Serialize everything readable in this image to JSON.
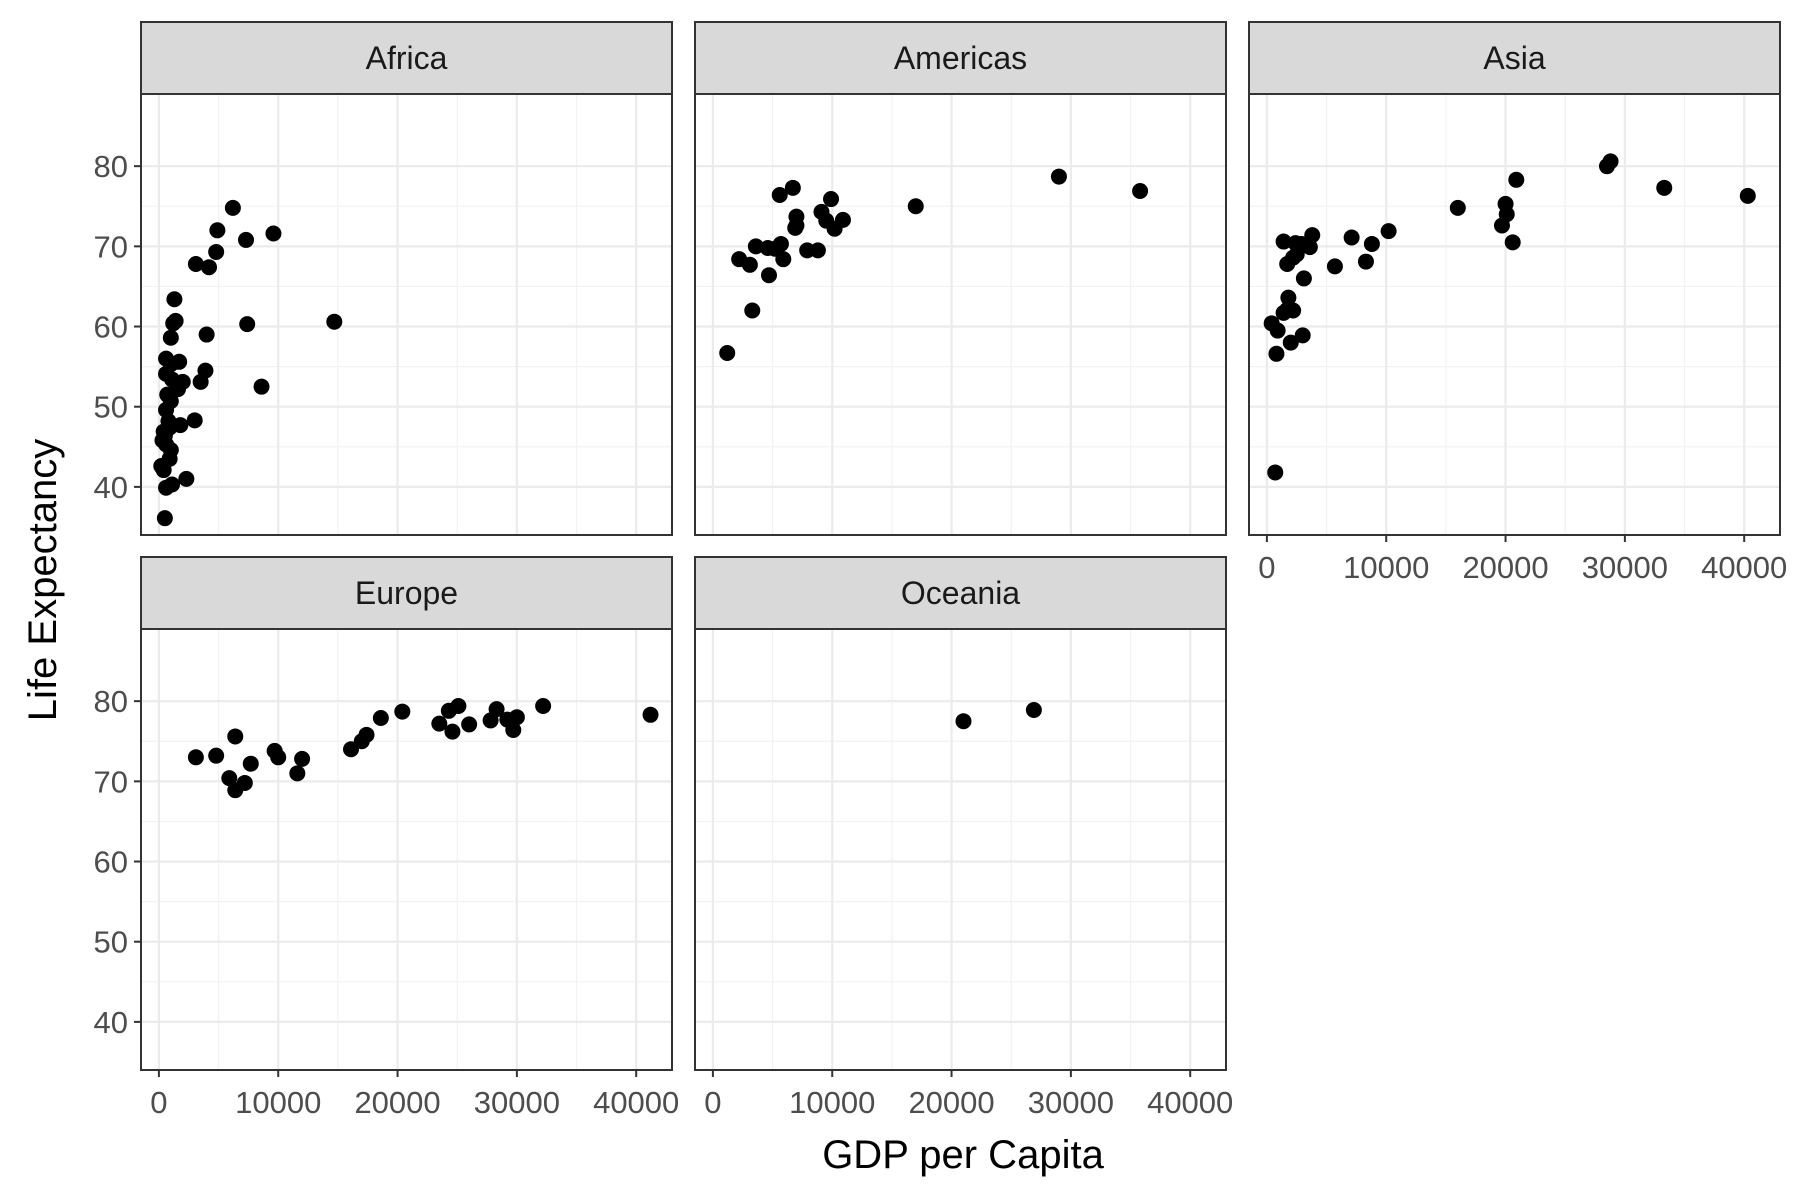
{
  "chart_data": {
    "type": "scatter",
    "xlabel": "GDP per Capita",
    "ylabel": "Life Expectancy",
    "xlim": [
      -1500,
      43000
    ],
    "ylim": [
      34,
      89
    ],
    "x_ticks": [
      0,
      10000,
      20000,
      30000,
      40000
    ],
    "y_ticks": [
      40,
      50,
      60,
      70,
      80
    ],
    "x_tick_labels": [
      "0",
      "10000",
      "20000",
      "30000",
      "40000"
    ],
    "y_tick_labels": [
      "40",
      "50",
      "60",
      "70",
      "80"
    ],
    "grid": true,
    "point_color": "#000000",
    "facets": [
      {
        "name": "Africa",
        "points": [
          [
            6200,
            74.8
          ],
          [
            4900,
            72.0
          ],
          [
            9600,
            71.6
          ],
          [
            7300,
            70.8
          ],
          [
            4800,
            69.3
          ],
          [
            3100,
            67.8
          ],
          [
            4200,
            67.4
          ],
          [
            1300,
            63.4
          ],
          [
            1400,
            60.7
          ],
          [
            1200,
            60.4
          ],
          [
            7400,
            60.3
          ],
          [
            14700,
            60.6
          ],
          [
            4000,
            59.0
          ],
          [
            1000,
            58.6
          ],
          [
            600,
            56.0
          ],
          [
            1700,
            55.6
          ],
          [
            1000,
            55.3
          ],
          [
            3900,
            54.5
          ],
          [
            600,
            54.1
          ],
          [
            1100,
            53.4
          ],
          [
            2000,
            53.1
          ],
          [
            3500,
            53.1
          ],
          [
            8600,
            52.5
          ],
          [
            1600,
            52.2
          ],
          [
            700,
            51.5
          ],
          [
            1000,
            50.7
          ],
          [
            600,
            49.6
          ],
          [
            3000,
            48.3
          ],
          [
            800,
            48.2
          ],
          [
            1800,
            47.7
          ],
          [
            900,
            47.4
          ],
          [
            400,
            46.9
          ],
          [
            500,
            46.4
          ],
          [
            300,
            45.8
          ],
          [
            600,
            45.3
          ],
          [
            1000,
            44.6
          ],
          [
            900,
            43.5
          ],
          [
            200,
            42.6
          ],
          [
            400,
            42.1
          ],
          [
            2300,
            41.0
          ],
          [
            1100,
            40.3
          ],
          [
            600,
            39.9
          ],
          [
            500,
            36.1
          ]
        ]
      },
      {
        "name": "Americas",
        "points": [
          [
            29000,
            78.7
          ],
          [
            35800,
            76.9
          ],
          [
            6700,
            77.3
          ],
          [
            5600,
            76.4
          ],
          [
            9900,
            75.9
          ],
          [
            17000,
            75.0
          ],
          [
            9100,
            74.3
          ],
          [
            7000,
            73.7
          ],
          [
            10900,
            73.3
          ],
          [
            9500,
            73.2
          ],
          [
            7000,
            72.6
          ],
          [
            10200,
            72.2
          ],
          [
            6900,
            72.3
          ],
          [
            5700,
            70.3
          ],
          [
            3600,
            70.0
          ],
          [
            4600,
            69.8
          ],
          [
            5200,
            69.7
          ],
          [
            7900,
            69.5
          ],
          [
            8800,
            69.5
          ],
          [
            2200,
            68.4
          ],
          [
            5900,
            68.4
          ],
          [
            3100,
            67.7
          ],
          [
            4700,
            66.4
          ],
          [
            3300,
            62.0
          ],
          [
            1200,
            56.7
          ]
        ]
      },
      {
        "name": "Asia",
        "points": [
          [
            28800,
            80.6
          ],
          [
            28500,
            80.0
          ],
          [
            33300,
            77.3
          ],
          [
            40300,
            76.3
          ],
          [
            20900,
            78.3
          ],
          [
            16000,
            74.8
          ],
          [
            20000,
            75.3
          ],
          [
            20100,
            74.0
          ],
          [
            19700,
            72.6
          ],
          [
            10200,
            71.9
          ],
          [
            7100,
            71.1
          ],
          [
            8800,
            70.3
          ],
          [
            20600,
            70.5
          ],
          [
            1400,
            70.6
          ],
          [
            2400,
            70.4
          ],
          [
            2900,
            70.3
          ],
          [
            3800,
            71.4
          ],
          [
            3600,
            69.9
          ],
          [
            2500,
            69.0
          ],
          [
            2200,
            68.6
          ],
          [
            8300,
            68.1
          ],
          [
            5700,
            67.5
          ],
          [
            1700,
            67.8
          ],
          [
            3100,
            66.0
          ],
          [
            1800,
            63.6
          ],
          [
            1700,
            62.1
          ],
          [
            1400,
            61.7
          ],
          [
            2200,
            62.0
          ],
          [
            400,
            60.4
          ],
          [
            900,
            59.5
          ],
          [
            3000,
            58.9
          ],
          [
            2000,
            58.0
          ],
          [
            800,
            56.6
          ],
          [
            700,
            41.8
          ]
        ]
      },
      {
        "name": "Europe",
        "points": [
          [
            41200,
            78.3
          ],
          [
            32200,
            79.4
          ],
          [
            30000,
            78.0
          ],
          [
            28300,
            79.0
          ],
          [
            25100,
            79.4
          ],
          [
            24300,
            78.8
          ],
          [
            27800,
            77.6
          ],
          [
            29200,
            77.7
          ],
          [
            23500,
            77.2
          ],
          [
            26000,
            77.1
          ],
          [
            29700,
            76.4
          ],
          [
            24600,
            76.2
          ],
          [
            20400,
            78.7
          ],
          [
            18600,
            77.9
          ],
          [
            17400,
            75.8
          ],
          [
            17000,
            75.0
          ],
          [
            16100,
            74.0
          ],
          [
            9700,
            73.8
          ],
          [
            10000,
            73.0
          ],
          [
            12000,
            72.8
          ],
          [
            11600,
            71.0
          ],
          [
            4800,
            73.2
          ],
          [
            3100,
            73.0
          ],
          [
            6400,
            75.6
          ],
          [
            7700,
            72.2
          ],
          [
            5900,
            70.4
          ],
          [
            6400,
            68.9
          ],
          [
            7200,
            69.8
          ]
        ]
      },
      {
        "name": "Oceania",
        "points": [
          [
            21000,
            77.5
          ],
          [
            26900,
            78.9
          ]
        ]
      }
    ]
  }
}
